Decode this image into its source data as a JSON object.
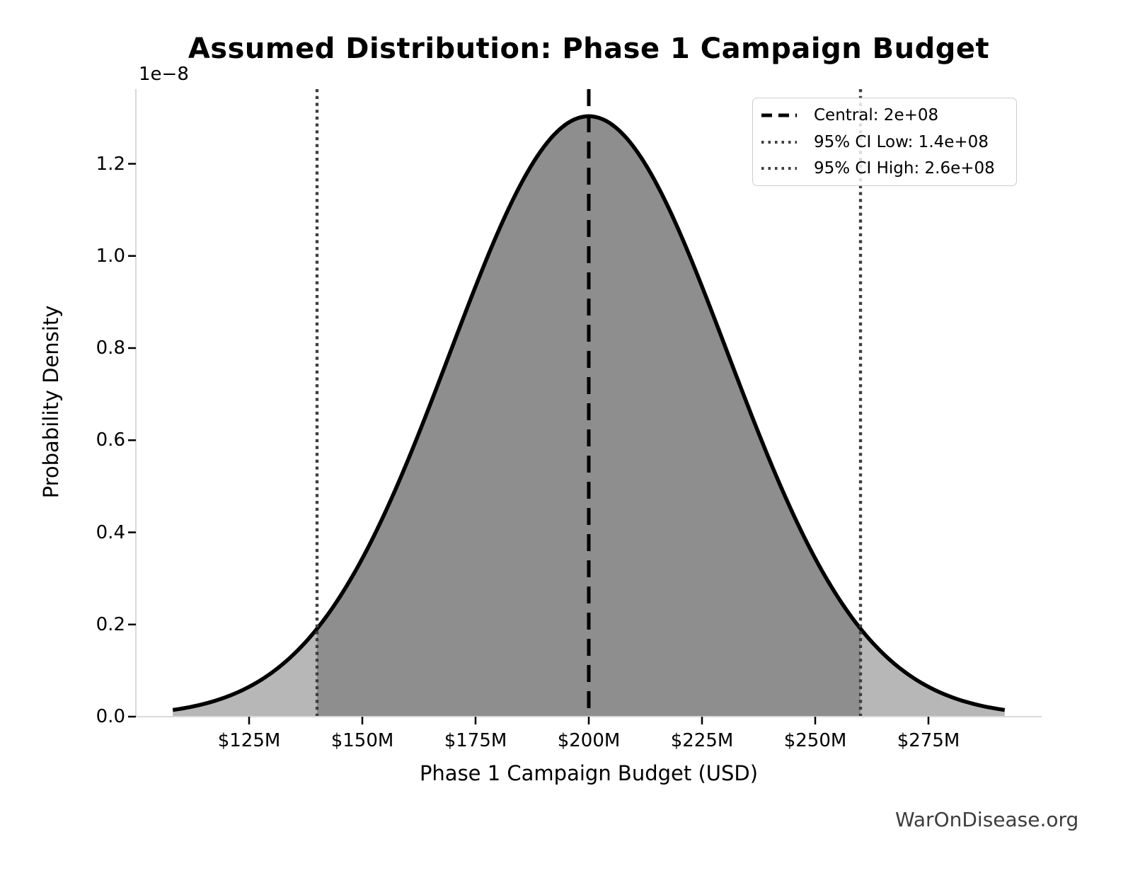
{
  "title": "Assumed Distribution: Phase 1 Campaign Budget",
  "watermark": "WarOnDisease.org",
  "colors": {
    "curve": "#000000",
    "fill_inner": "#8e8e8e",
    "fill_outer": "#b7b7b7",
    "central_line": "#000000",
    "ci_line": "#3d3d3d",
    "spine": "#d9d9d9",
    "tick": "#000000",
    "text": "#000000",
    "watermark": "#3d3d3d",
    "legend_border": "#cccccc"
  },
  "chart_data": {
    "type": "area",
    "distribution": "normal",
    "title": "Assumed Distribution: Phase 1 Campaign Budget",
    "xlabel": "Phase 1 Campaign Budget (USD)",
    "ylabel": "Probability Density",
    "y_offset_label": "1e−8",
    "central": 200000000.0,
    "ci_level": "95%",
    "ci_low": 140000000.0,
    "ci_high": 260000000.0,
    "sigma": 30612245.0,
    "peak_density": 1.3032e-08,
    "x_data_range": [
      108160000.0,
      291840000.0
    ],
    "xlim": [
      100000000.0,
      300000000.0
    ],
    "ylim": [
      0,
      1.362e-08
    ],
    "grid": false,
    "x_ticks": {
      "labels": [
        "$125M",
        "$150M",
        "$175M",
        "$200M",
        "$225M",
        "$250M",
        "$275M"
      ],
      "values": [
        125000000.0,
        150000000.0,
        175000000.0,
        200000000.0,
        225000000.0,
        250000000.0,
        275000000.0
      ]
    },
    "y_ticks": {
      "labels": [
        "0.0",
        "0.2",
        "0.4",
        "0.6",
        "0.8",
        "1.0",
        "1.2"
      ],
      "values": [
        0,
        2e-09,
        4e-09,
        6e-09,
        8e-09,
        1e-08,
        1.2e-08
      ]
    },
    "legend": {
      "position": "upper right",
      "items": [
        {
          "label": "Central: 2e+08",
          "style": "dashed",
          "value": 200000000.0
        },
        {
          "label": "95% CI Low: 1.4e+08",
          "style": "dotted",
          "value": 140000000.0
        },
        {
          "label": "95% CI High: 2.6e+08",
          "style": "dotted",
          "value": 260000000.0
        }
      ]
    }
  }
}
